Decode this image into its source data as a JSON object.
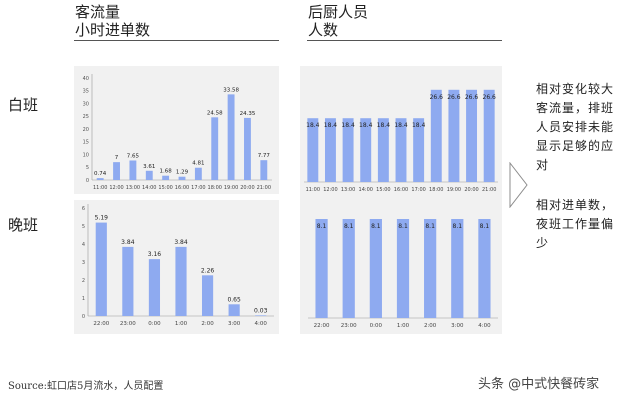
{
  "headers": {
    "left_title": "客流量",
    "left_subtitle": "小时进单数",
    "right_title": "后厨人员",
    "right_subtitle": "人数"
  },
  "rows": {
    "day_label": "白班",
    "night_label": "晚班"
  },
  "notes": {
    "day_note": [
      "相对变化较大",
      "客流量，排班",
      "人员安排未能",
      "显示足够的应",
      "对"
    ],
    "night_note": [
      "相对进单数，",
      "夜班工作量偏",
      "少"
    ]
  },
  "source": "Source:虹口店5月流水，人员配置",
  "watermark": "头条 @中式快餐砖家",
  "colors": {
    "bar": "#8eaaf0",
    "panel": "#f1f1f1",
    "arrow": "#8c8c8c"
  },
  "chart_data": [
    {
      "id": "day_orders",
      "type": "bar",
      "categories": [
        "11:00",
        "12:00",
        "13:00",
        "14:00",
        "15:00",
        "16:00",
        "17:00",
        "18:00",
        "19:00",
        "20:00",
        "21:00"
      ],
      "values": [
        0.74,
        7,
        7.65,
        3.61,
        1.68,
        1.29,
        4.81,
        24.58,
        33.58,
        24.35,
        7.77
      ],
      "value_labels": [
        "0.74",
        "7",
        "7.65",
        "3.61",
        "1.68",
        "1.29",
        "4.81",
        "24.58",
        "33.58",
        "24.35",
        "7.77"
      ],
      "ylim": [
        0,
        40
      ],
      "yticks": [
        "0",
        "5",
        "10",
        "15",
        "20",
        "25",
        "30",
        "35",
        "40"
      ],
      "axis_visible": true
    },
    {
      "id": "night_orders",
      "type": "bar",
      "categories": [
        "22:00",
        "23:00",
        "0:00",
        "1:00",
        "2:00",
        "3:00",
        "4:00"
      ],
      "values": [
        5.19,
        3.84,
        3.16,
        3.84,
        2.26,
        0.65,
        0.03
      ],
      "value_labels": [
        "5.19",
        "3.84",
        "3.16",
        "3.84",
        "2.26",
        "0.65",
        "0.03"
      ],
      "ylim": [
        0,
        6
      ],
      "yticks": [
        "0",
        "1",
        "2",
        "3",
        "4",
        "5",
        "6"
      ],
      "axis_visible": true
    },
    {
      "id": "day_staff",
      "type": "bar",
      "categories": [
        "11:00",
        "12:00",
        "13:00",
        "14:00",
        "15:00",
        "16:00",
        "17:00",
        "18:00",
        "19:00",
        "20:00",
        "21:00"
      ],
      "values": [
        18.4,
        18.4,
        18.4,
        18.4,
        18.4,
        18.4,
        18.4,
        26.6,
        26.6,
        26.6,
        26.6
      ],
      "value_labels": [
        "18.4",
        "18.4",
        "18.4",
        "18.4",
        "18.4",
        "18.4",
        "18.4",
        "26.6",
        "26.6",
        "26.6",
        "26.6"
      ],
      "ylim": [
        0,
        30
      ],
      "yticks": [],
      "axis_visible": false
    },
    {
      "id": "night_staff",
      "type": "bar",
      "categories": [
        "22:00",
        "23:00",
        "0:00",
        "1:00",
        "2:00",
        "3:00",
        "4:00"
      ],
      "values": [
        8.1,
        8.1,
        8.1,
        8.1,
        8.1,
        8.1,
        8.1
      ],
      "value_labels": [
        "8.1",
        "8.1",
        "8.1",
        "8.1",
        "8.1",
        "8.1",
        "8.1"
      ],
      "ylim": [
        0,
        9
      ],
      "yticks": [],
      "axis_visible": false
    }
  ]
}
